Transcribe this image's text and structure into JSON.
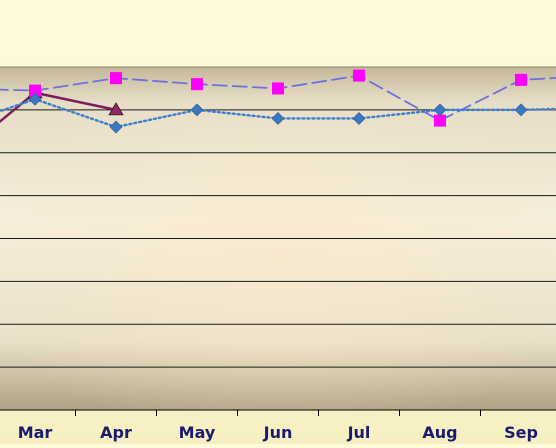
{
  "chart_data": {
    "type": "line",
    "categories": [
      "Mar",
      "Apr",
      "May",
      "Jun",
      "Jul",
      "Aug",
      "Sep"
    ],
    "ylim": [
      0,
      8
    ],
    "grid": true,
    "series": [
      {
        "values_left": 5.85,
        "values": [
          7.4,
          7.0,
          null,
          null,
          null,
          null,
          null
        ],
        "style": "solid",
        "marker": "triangle",
        "color": "#7a1f5a",
        "marker_color": "#8c2a5e"
      },
      {
        "values_left": 7.5,
        "values": [
          7.45,
          7.74,
          7.6,
          7.5,
          7.8,
          6.75,
          7.7
        ],
        "values_right": 7.8,
        "style": "dashed",
        "marker": "square",
        "color": "#6f6fe0",
        "marker_color": "#ff00ff"
      },
      {
        "values_left": 6.6,
        "values": [
          7.25,
          6.6,
          7.0,
          6.8,
          6.8,
          7.0,
          7.0
        ],
        "values_right": 7.05,
        "style": "dotted",
        "marker": "diamond",
        "color": "#3b7fcf",
        "marker_color": "#3a78c0"
      }
    ]
  }
}
